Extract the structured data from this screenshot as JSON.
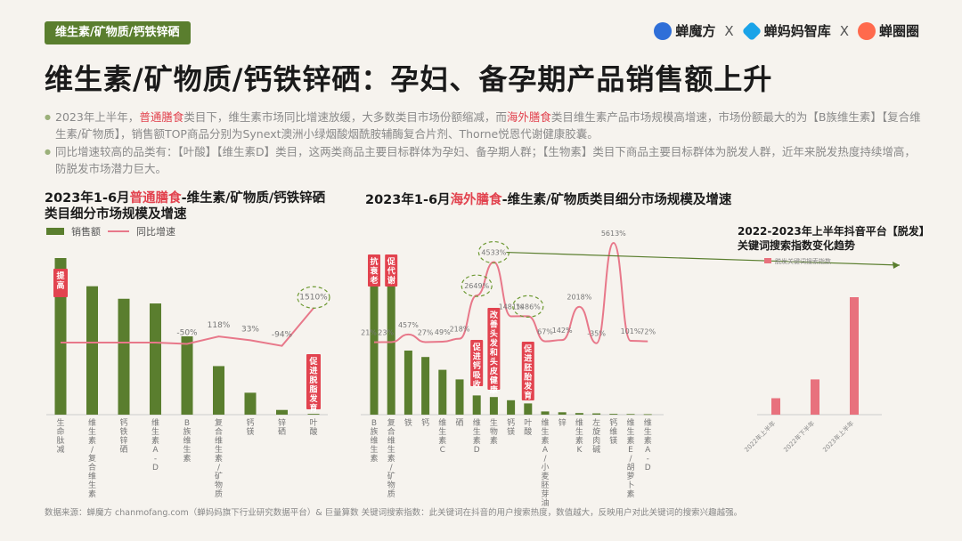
{
  "tag": "维生素/矿物质/钙铁锌硒",
  "logos": {
    "chanmofang": "蝉魔方",
    "mama": "蝉妈妈智库",
    "quan": "蝉圈圈",
    "sep": "X"
  },
  "title": "维生素/矿物质/钙铁锌硒：孕妇、备孕期产品销售额上升",
  "bullets": {
    "b1_a": "2023年上半年，",
    "b1_hl1": "普通膳食",
    "b1_b": "类目下，维生素市场同比增速放缓，大多数类目市场份额缩减，而",
    "b1_hl2": "海外膳食",
    "b1_c": "类目维生素产品市场规模高增速，市场份额最大的为【B族维生素】【复合维生素/矿物质】，销售额TOP商品分别为Synext澳洲小绿烟酸烟酰胺辅酶复合片剂、Thorne悦恩代谢健康胶囊。",
    "b2": "同比增速较高的品类有：【叶酸】【维生素D】类目，这两类商品主要目标群体为孕妇、备孕期人群；【生物素】类目下商品主要目标群体为脱发人群，近年来脱发热度持续增高，防脱发市场潜力巨大。"
  },
  "chart1": {
    "title_a": "2023年1-6月",
    "title_hl": "普通膳食",
    "title_b": "-维生素/矿物质/钙铁锌硒",
    "title_c": "类目细分市场规模及增速",
    "legend_bar": "销售额",
    "legend_line": "同比增速"
  },
  "chart2": {
    "title_a": "2023年1-6月",
    "title_hl": "海外膳食",
    "title_b": "-维生素/矿物质类目细分市场规模及增速"
  },
  "chart3": {
    "title_a": "2022-2023年上半年抖音平台【脱发】",
    "title_b": "关键词搜索指数变化趋势",
    "legend": "脱发关键词搜索指数"
  },
  "footer": "数据来源：蝉魔方 chanmofang.com（蝉妈妈旗下行业研究数据平台）& 巨量算数 关键词搜索指数：此关键词在抖音的用户搜索热度，数值越大，反映用户对此关键词的搜索兴趣越强。",
  "colors": {
    "bar": "#5a7e2e",
    "line": "#e8788a",
    "accent": "#e2434f",
    "pinkbar": "#e8717d"
  },
  "chart_data": [
    {
      "type": "bar",
      "categories": [
        "生命肽减",
        "维生素/复合维生素",
        "钙铁锌硒",
        "维生素A-D",
        "B族维生素",
        "复合维生素/矿物质",
        "钙镁",
        "锌硒",
        "叶酸"
      ],
      "series": [
        {
          "name": "销售额",
          "values": [
            100,
            82,
            74,
            71,
            50,
            31,
            14,
            3,
            0.5
          ]
        },
        {
          "name": "同比增速",
          "values": [
            -20,
            -20,
            -20,
            -20,
            -50,
            118,
            33,
            -94,
            1510
          ]
        }
      ],
      "labels": [
        "",
        "",
        "",
        "",
        "-50%",
        "118%",
        "33%",
        "-94%",
        "1510%"
      ],
      "annotations": [
        "提高",
        "促进脱脂发育"
      ]
    },
    {
      "type": "bar",
      "categories": [
        "B族维生素",
        "复合维生素/矿物质",
        "铁",
        "钙",
        "维生素C",
        "硒",
        "维生素D",
        "生物素",
        "钙镁",
        "叶酸",
        "维生素A/小麦胚芽油",
        "锌",
        "维生素K",
        "左旋肉碱",
        "钙维镁",
        "维生素E/胡萝卜素",
        "维生素A-D"
      ],
      "series": [
        {
          "name": "销售额",
          "values": [
            100,
            98,
            40,
            36,
            28,
            22,
            12,
            11,
            9,
            7,
            2,
            1.5,
            1,
            0.8,
            0.5,
            0.4,
            0.3
          ]
        },
        {
          "name": "同比增速",
          "values": [
            21,
            23,
            457,
            27,
            49,
            218,
            2649,
            4533,
            1481,
            1486,
            67,
            142,
            2018,
            -35,
            5613,
            101,
            72
          ]
        }
      ],
      "labels": [
        "21%",
        "23%",
        "457%",
        "27%",
        "49%",
        "218%",
        "2649%",
        "4533%",
        "1481%",
        "1486%",
        "67%",
        "142%",
        "2018%",
        "-35%",
        "5613%",
        "101%",
        "72%"
      ],
      "annotations": [
        "抗衰老",
        "促代谢",
        "促进钙吸收",
        "改善头发和头皮健康",
        "促进胚胎发育"
      ]
    },
    {
      "type": "bar",
      "categories": [
        "2022年上半年",
        "2022年下半年",
        "2023年上半年"
      ],
      "series": [
        {
          "name": "脱发关键词搜索指数",
          "values": [
            14,
            30,
            100
          ]
        }
      ]
    }
  ]
}
